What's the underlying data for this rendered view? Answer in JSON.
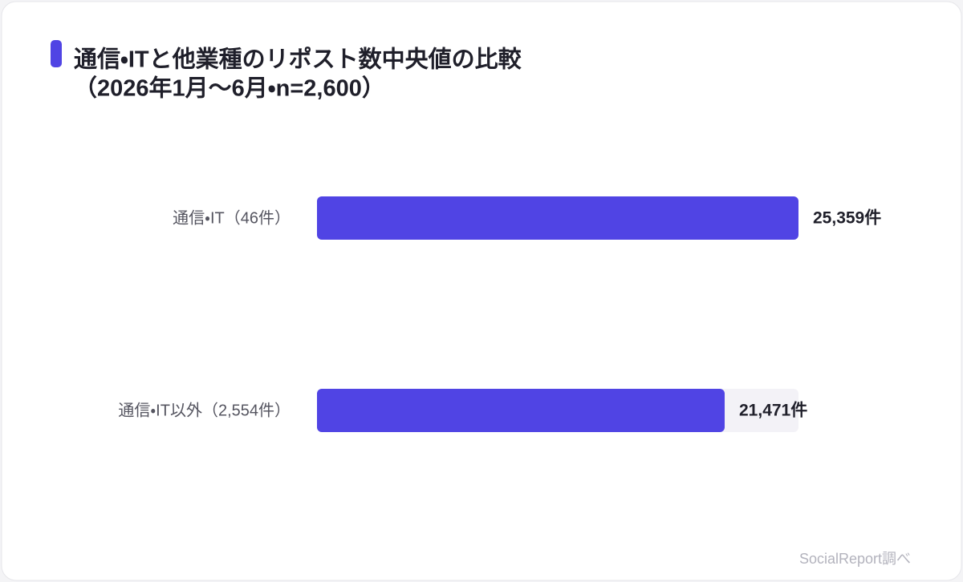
{
  "chart_data": {
    "type": "bar",
    "orientation": "horizontal",
    "title": "通信・ITと他業種のリポスト数中央値の比較",
    "subtitle": "（2026年1月〜6月・n=2,600）",
    "categories": [
      "通信・IT（46件）",
      "通信・IT以外（2,554件）"
    ],
    "values": [
      25359,
      21471
    ],
    "value_labels": [
      "25,359件",
      "21,471件"
    ],
    "color": "#5044e4",
    "source": "SocialReport調べ"
  }
}
